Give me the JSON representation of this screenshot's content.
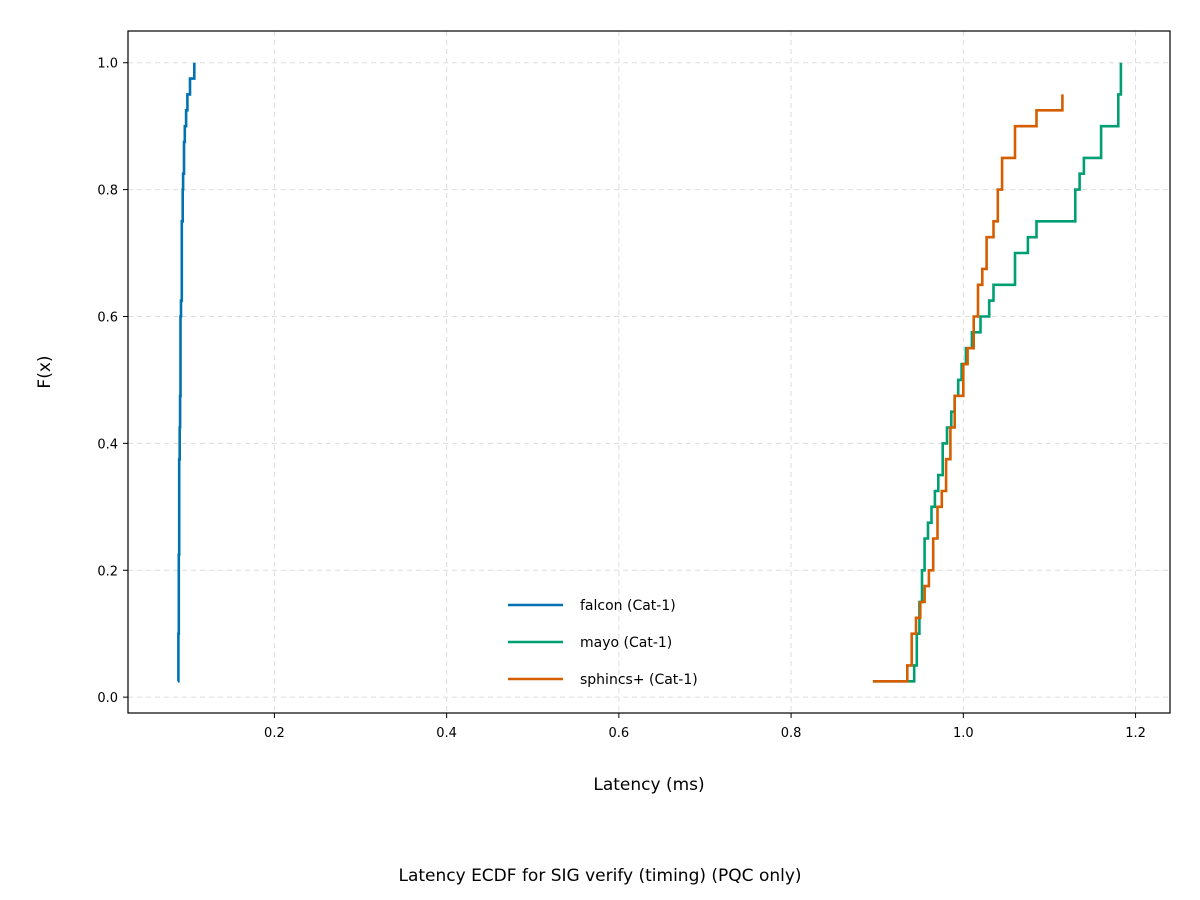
{
  "chart_data": {
    "type": "line",
    "step": true,
    "caption": "Latency ECDF for SIG verify (timing) (PQC only)",
    "xlabel": "Latency (ms)",
    "ylabel": "F(x)",
    "xlim": [
      0.03,
      1.24
    ],
    "ylim": [
      -0.025,
      1.05
    ],
    "xticks": [
      0.2,
      0.4,
      0.6,
      0.8,
      1.0,
      1.2
    ],
    "xtick_labels": [
      "0.2",
      "0.4",
      "0.6",
      "0.8",
      "1.0",
      "1.2"
    ],
    "yticks": [
      0.0,
      0.2,
      0.4,
      0.6,
      0.8,
      1.0
    ],
    "ytick_labels": [
      "0.0",
      "0.2",
      "0.4",
      "0.6",
      "0.8",
      "1.0"
    ],
    "grid": true,
    "legend_position": "lower-center",
    "series": [
      {
        "name": "falcon (Cat-1)",
        "color": "#0072b2",
        "x": [
          0.088,
          0.0885,
          0.089,
          0.0895,
          0.09,
          0.0905,
          0.091,
          0.0915,
          0.0925,
          0.0935,
          0.094,
          0.095,
          0.096,
          0.0975,
          0.099,
          0.102,
          0.107
        ],
        "y": [
          0.025,
          0.1,
          0.225,
          0.375,
          0.425,
          0.475,
          0.6,
          0.625,
          0.75,
          0.8,
          0.825,
          0.875,
          0.9,
          0.925,
          0.95,
          0.975,
          1.0
        ]
      },
      {
        "name": "mayo (Cat-1)",
        "color": "#009e73",
        "x": [
          0.895,
          0.943,
          0.946,
          0.949,
          0.952,
          0.955,
          0.959,
          0.963,
          0.967,
          0.971,
          0.976,
          0.981,
          0.986,
          0.99,
          0.994,
          0.998,
          1.003,
          1.01,
          1.02,
          1.03,
          1.035,
          1.06,
          1.075,
          1.085,
          1.13,
          1.135,
          1.14,
          1.16,
          1.18,
          1.183
        ],
        "y": [
          0.025,
          0.05,
          0.1,
          0.15,
          0.2,
          0.25,
          0.275,
          0.3,
          0.325,
          0.35,
          0.4,
          0.425,
          0.45,
          0.475,
          0.5,
          0.525,
          0.55,
          0.575,
          0.6,
          0.625,
          0.65,
          0.7,
          0.725,
          0.75,
          0.8,
          0.825,
          0.85,
          0.9,
          0.95,
          1.0
        ]
      },
      {
        "name": "sphincs+ (Cat-1)",
        "color": "#d55e00",
        "x": [
          0.895,
          0.935,
          0.94,
          0.945,
          0.95,
          0.955,
          0.96,
          0.965,
          0.97,
          0.975,
          0.98,
          0.985,
          0.99,
          1.0,
          1.005,
          1.012,
          1.017,
          1.022,
          1.027,
          1.035,
          1.04,
          1.045,
          1.06,
          1.085,
          1.115
        ],
        "y": [
          0.025,
          0.05,
          0.1,
          0.125,
          0.15,
          0.175,
          0.2,
          0.25,
          0.3,
          0.325,
          0.375,
          0.425,
          0.475,
          0.525,
          0.55,
          0.6,
          0.65,
          0.675,
          0.725,
          0.75,
          0.8,
          0.85,
          0.9,
          0.925,
          0.95
        ]
      }
    ]
  }
}
